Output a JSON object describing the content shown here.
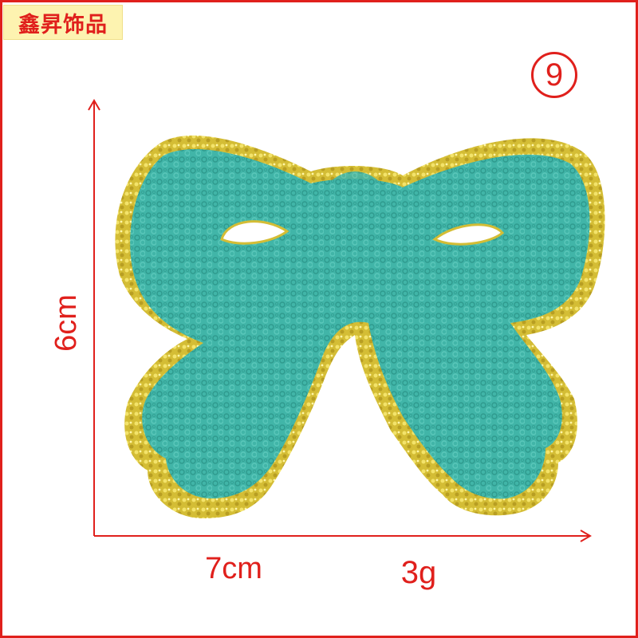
{
  "brand": {
    "label": "鑫昇饰品"
  },
  "badge": {
    "label": "9"
  },
  "dimensions": {
    "height_label": "6cm",
    "width_label": "7cm",
    "weight_label": "3g"
  },
  "colors": {
    "frame": "#e0201c",
    "brand_bg": "#fdf3b0",
    "chenille": "#3fb3a6",
    "glitter": "#d8c23a"
  },
  "product": {
    "name": "bow-patch-icon"
  }
}
